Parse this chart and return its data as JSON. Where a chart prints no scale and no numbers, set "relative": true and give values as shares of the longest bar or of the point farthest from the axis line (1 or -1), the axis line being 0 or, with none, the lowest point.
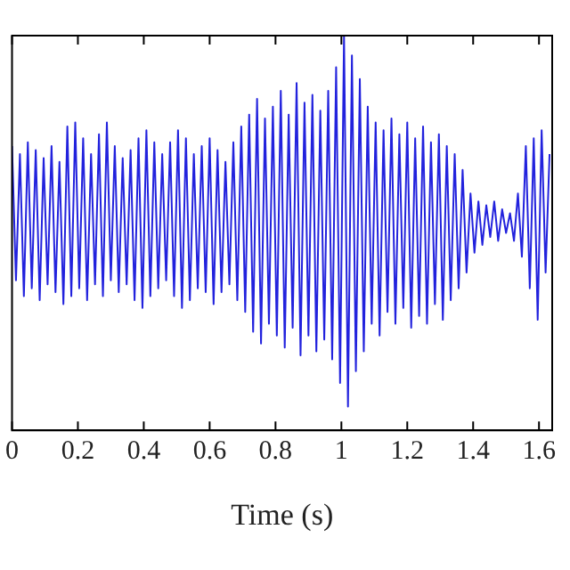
{
  "chart_data": {
    "type": "line",
    "xlabel": "Time (s)",
    "relative": true,
    "xlim": [
      0,
      1.64
    ],
    "xticks": [
      0,
      0.2,
      0.4,
      0.6,
      0.8,
      1,
      1.2,
      1.4,
      1.6
    ],
    "tick_labels": "x",
    "grid": false,
    "legend": false,
    "marker": "none",
    "line_style": "solid",
    "x": [
      0,
      0.012,
      0.024,
      0.036,
      0.048,
      0.06,
      0.072,
      0.084,
      0.096,
      0.108,
      0.12,
      0.132,
      0.144,
      0.156,
      0.168,
      0.18,
      0.192,
      0.204,
      0.216,
      0.228,
      0.24,
      0.252,
      0.264,
      0.276,
      0.288,
      0.3,
      0.312,
      0.324,
      0.336,
      0.348,
      0.36,
      0.372,
      0.384,
      0.396,
      0.408,
      0.42,
      0.432,
      0.444,
      0.456,
      0.468,
      0.48,
      0.492,
      0.504,
      0.516,
      0.528,
      0.54,
      0.552,
      0.564,
      0.576,
      0.588,
      0.6,
      0.612,
      0.624,
      0.636,
      0.648,
      0.66,
      0.672,
      0.684,
      0.696,
      0.708,
      0.72,
      0.732,
      0.744,
      0.756,
      0.768,
      0.78,
      0.792,
      0.804,
      0.816,
      0.828,
      0.84,
      0.852,
      0.864,
      0.876,
      0.888,
      0.9,
      0.912,
      0.924,
      0.936,
      0.948,
      0.96,
      0.972,
      0.984,
      0.996,
      1.008,
      1.02,
      1.032,
      1.044,
      1.056,
      1.068,
      1.08,
      1.092,
      1.104,
      1.116,
      1.128,
      1.14,
      1.152,
      1.164,
      1.176,
      1.188,
      1.2,
      1.212,
      1.224,
      1.236,
      1.248,
      1.26,
      1.272,
      1.284,
      1.296,
      1.308,
      1.32,
      1.332,
      1.344,
      1.356,
      1.368,
      1.38,
      1.392,
      1.404,
      1.416,
      1.428,
      1.44,
      1.452,
      1.464,
      1.476,
      1.488,
      1.5,
      1.512,
      1.524,
      1.536,
      1.548,
      1.56,
      1.572,
      1.584,
      1.596,
      1.608,
      1.62,
      1.632
    ],
    "series": [
      {
        "color": "#2222dd",
        "values": [
          0.72,
          0.38,
          0.7,
          0.34,
          0.73,
          0.36,
          0.71,
          0.33,
          0.69,
          0.37,
          0.72,
          0.35,
          0.68,
          0.32,
          0.77,
          0.34,
          0.78,
          0.36,
          0.74,
          0.33,
          0.7,
          0.37,
          0.75,
          0.34,
          0.78,
          0.38,
          0.72,
          0.35,
          0.69,
          0.37,
          0.71,
          0.33,
          0.74,
          0.31,
          0.76,
          0.34,
          0.73,
          0.36,
          0.7,
          0.38,
          0.73,
          0.34,
          0.76,
          0.31,
          0.74,
          0.33,
          0.7,
          0.36,
          0.72,
          0.35,
          0.74,
          0.32,
          0.71,
          0.35,
          0.68,
          0.37,
          0.73,
          0.33,
          0.77,
          0.3,
          0.8,
          0.25,
          0.84,
          0.22,
          0.79,
          0.27,
          0.82,
          0.24,
          0.86,
          0.21,
          0.8,
          0.26,
          0.88,
          0.19,
          0.83,
          0.24,
          0.85,
          0.2,
          0.81,
          0.23,
          0.86,
          0.18,
          0.92,
          0.12,
          1.0,
          0.06,
          0.95,
          0.15,
          0.89,
          0.2,
          0.82,
          0.27,
          0.78,
          0.24,
          0.76,
          0.3,
          0.79,
          0.27,
          0.75,
          0.31,
          0.78,
          0.26,
          0.74,
          0.29,
          0.77,
          0.27,
          0.73,
          0.32,
          0.75,
          0.28,
          0.72,
          0.33,
          0.7,
          0.36,
          0.66,
          0.4,
          0.6,
          0.45,
          0.58,
          0.47,
          0.57,
          0.49,
          0.58,
          0.48,
          0.56,
          0.5,
          0.55,
          0.48,
          0.6,
          0.44,
          0.72,
          0.36,
          0.74,
          0.28,
          0.76,
          0.4,
          0.7
        ]
      }
    ]
  }
}
